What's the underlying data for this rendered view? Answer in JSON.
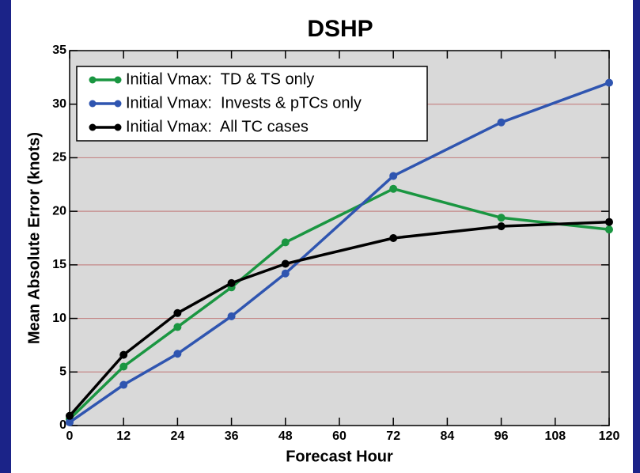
{
  "chart_data": {
    "type": "line",
    "title": "DSHP",
    "xlabel": "Forecast Hour",
    "ylabel": "Mean Absolute Error (knots)",
    "x": [
      0,
      12,
      24,
      36,
      48,
      72,
      96,
      120
    ],
    "series": [
      {
        "name": "Initial Vmax:  TD & TS only",
        "color": "#1a9641",
        "values": [
          0.6,
          5.5,
          9.2,
          12.9,
          17.1,
          22.1,
          19.4,
          18.3
        ]
      },
      {
        "name": "Initial Vmax:  Invests & pTCs only",
        "color": "#2f55b0",
        "values": [
          0.3,
          3.8,
          6.7,
          10.2,
          14.2,
          23.3,
          28.3,
          32.0
        ]
      },
      {
        "name": "Initial Vmax:  All TC cases",
        "color": "#000000",
        "values": [
          0.9,
          6.6,
          10.5,
          13.3,
          15.1,
          17.5,
          18.6,
          19.0
        ]
      }
    ],
    "xlim": [
      0,
      120
    ],
    "xticks": [
      0,
      12,
      24,
      36,
      48,
      60,
      72,
      84,
      96,
      108,
      120
    ],
    "ylim": [
      0,
      35
    ],
    "yticks": [
      0,
      5,
      10,
      15,
      20,
      25,
      30,
      35
    ],
    "grid": true,
    "legend": "upper left"
  }
}
